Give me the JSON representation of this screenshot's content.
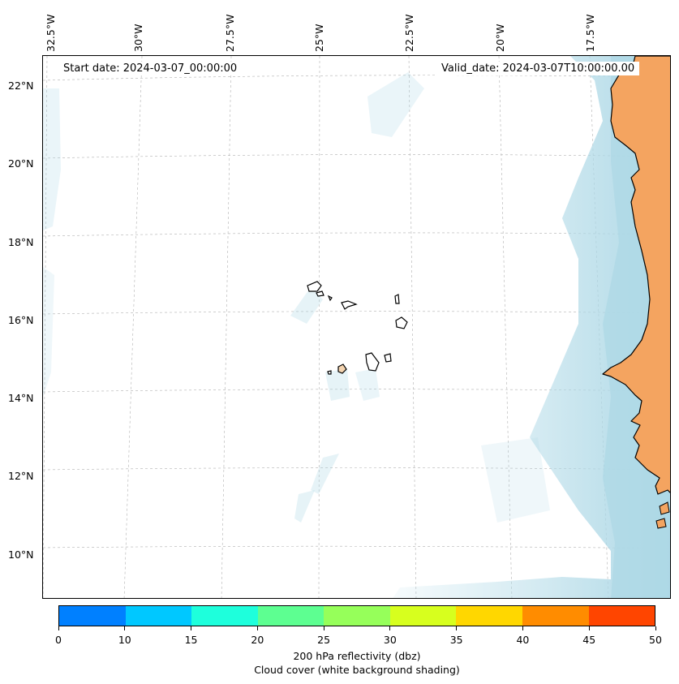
{
  "header": {
    "start_date": "Start date: 2024-03-07_00:00:00",
    "valid_date": "Valid_date: 2024-03-07T10:00:00.00"
  },
  "axes": {
    "lon_labels": [
      "32.5°W",
      "30°W",
      "27.5°W",
      "25°W",
      "22.5°W",
      "20°W",
      "17.5°W"
    ],
    "lat_labels": [
      "22°N",
      "20°N",
      "18°N",
      "16°N",
      "14°N",
      "12°N",
      "10°N"
    ]
  },
  "colorbar": {
    "tick_labels": [
      "0",
      "10",
      "15",
      "20",
      "25",
      "30",
      "35",
      "40",
      "45",
      "50"
    ],
    "colors": [
      "#0080ff",
      "#00c8ff",
      "#1effdc",
      "#5dff91",
      "#96ff5a",
      "#d7ff1e",
      "#ffd700",
      "#ff8c00",
      "#ff4500"
    ],
    "label": "200 hPa reflectivity (dbz)",
    "sublabel": "Cloud cover (white background shading)"
  },
  "style": {
    "land_color": "#f4a460",
    "cloud_color": "#add8e6",
    "coast_color": "#000000",
    "grid_color": "#b0b0b0"
  }
}
